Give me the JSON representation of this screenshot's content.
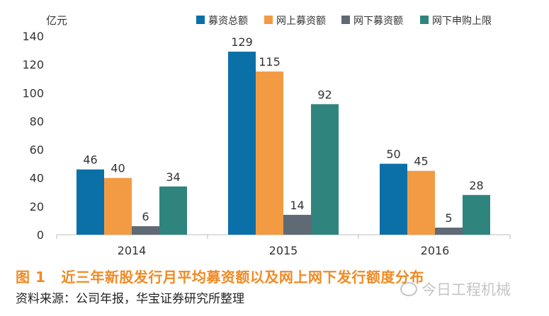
{
  "chart_data": {
    "type": "bar",
    "yunit": "亿元",
    "categories": [
      "2014",
      "2015",
      "2016"
    ],
    "ylim": [
      0,
      140
    ],
    "yticks": [
      0,
      20,
      40,
      60,
      80,
      100,
      120,
      140
    ],
    "grid": false,
    "legend_position": "top-right",
    "series": [
      {
        "name": "募资总额",
        "color": "#0b6fa8",
        "values": [
          46,
          129,
          50
        ]
      },
      {
        "name": "网上募资额",
        "color": "#f29b43",
        "values": [
          40,
          115,
          45
        ]
      },
      {
        "name": "网下募资额",
        "color": "#5f6a74",
        "values": [
          6,
          14,
          5
        ]
      },
      {
        "name": "网下申购上限",
        "color": "#2f857d",
        "values": [
          34,
          92,
          28
        ]
      }
    ]
  },
  "caption": {
    "number": "图 1",
    "title": "近三年新股发行月平均募资额以及网上网下发行额度分布"
  },
  "source": "资料来源：公司年报，华宝证券研究所整理",
  "watermark": "今日工程机械"
}
